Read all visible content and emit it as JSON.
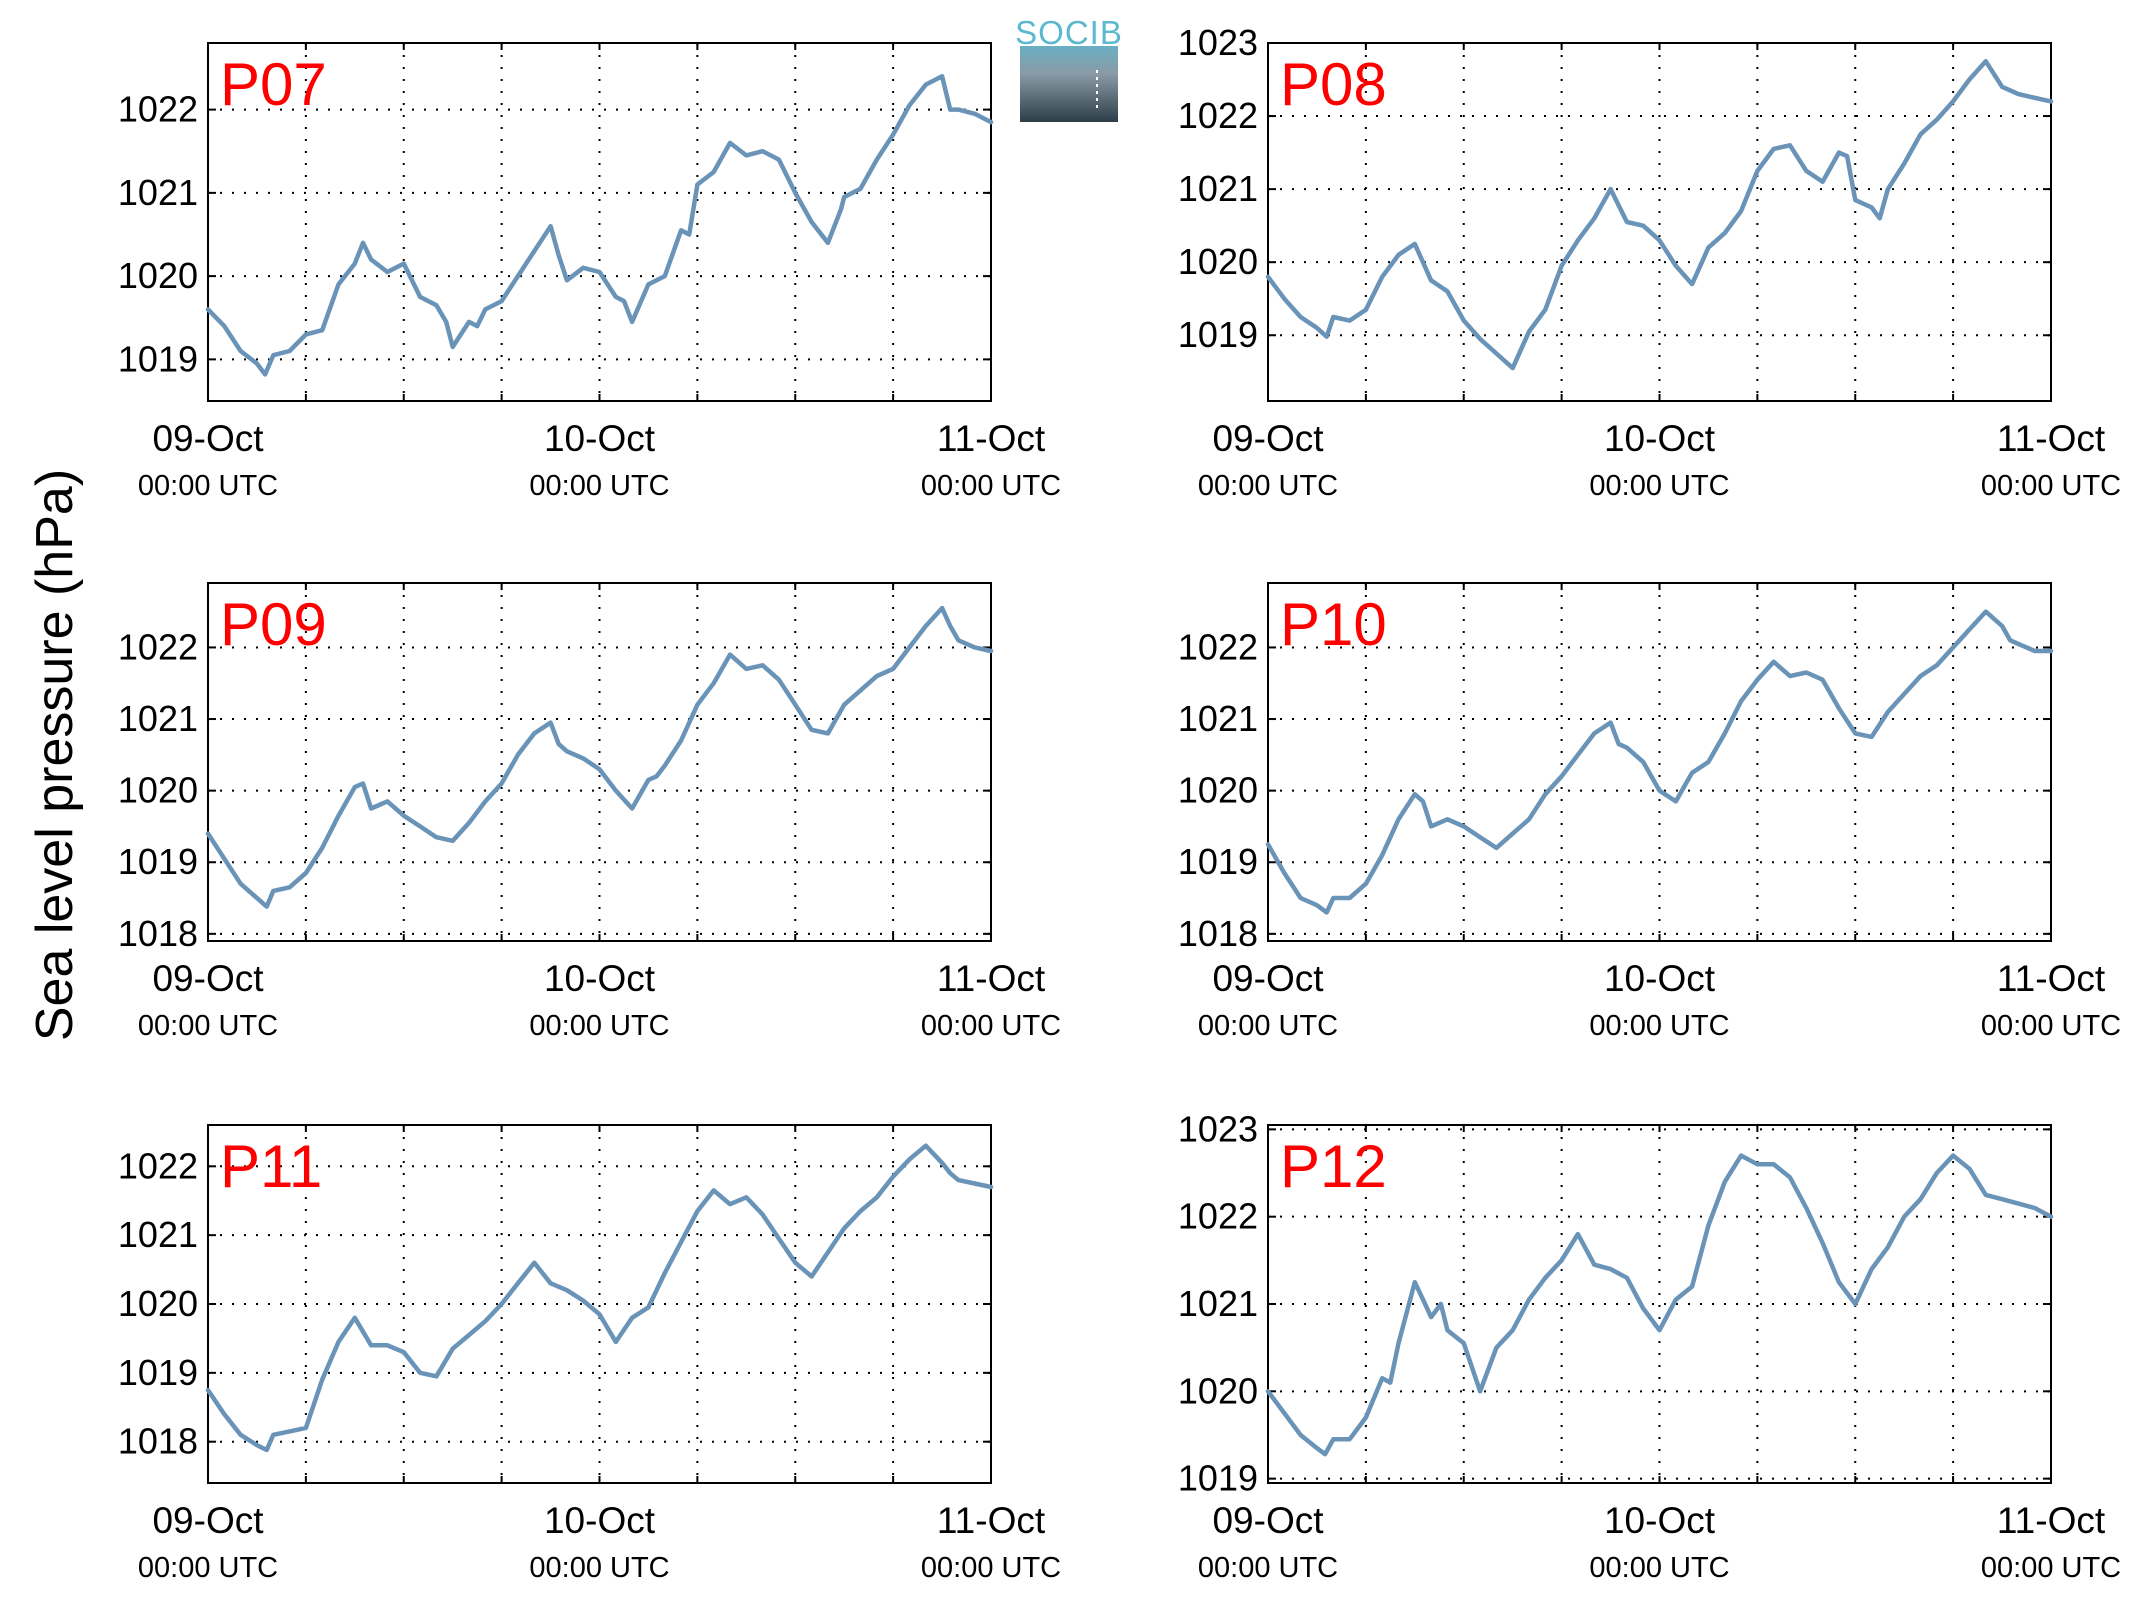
{
  "ylabel": "Sea level pressure (hPa)",
  "logo_text": "SOCIB",
  "colors": {
    "line": "#6a93b8",
    "station_label": "#ff0000",
    "logo_top": "#5bb9cf",
    "logo_bottom": "#2d3e49"
  },
  "chart_data": [
    {
      "type": "line",
      "title": "P07",
      "ylim": [
        1018.5,
        1022.8
      ],
      "yticks": [
        1019,
        1020,
        1021,
        1022
      ],
      "xticks": [
        {
          "date": "09-Oct",
          "time": "00:00 UTC"
        },
        {
          "date": "10-Oct",
          "time": "00:00 UTC"
        },
        {
          "date": "11-Oct",
          "time": "00:00 UTC"
        }
      ],
      "x_hours_range": [
        0,
        48
      ],
      "grid": true,
      "series": [
        {
          "x": [
            0,
            1,
            2,
            3,
            3.5,
            4,
            5,
            6,
            7,
            8,
            9,
            9.5,
            10,
            11,
            12,
            13,
            14,
            14.6,
            15,
            16,
            16.5,
            17,
            18,
            19,
            20,
            21,
            21.5,
            22,
            23,
            24,
            25,
            25.5,
            26,
            27,
            28,
            29,
            29.5,
            30,
            31,
            32,
            33,
            34,
            35,
            36,
            37,
            38,
            38.8,
            39,
            40,
            41,
            42,
            43,
            44,
            45,
            45.5,
            46,
            47,
            48
          ],
          "y": [
            1019.6,
            1019.4,
            1019.1,
            1018.95,
            1018.82,
            1019.05,
            1019.1,
            1019.3,
            1019.35,
            1019.9,
            1020.15,
            1020.4,
            1020.2,
            1020.05,
            1020.15,
            1019.75,
            1019.65,
            1019.45,
            1019.15,
            1019.45,
            1019.4,
            1019.6,
            1019.7,
            1020.0,
            1020.3,
            1020.6,
            1020.25,
            1019.95,
            1020.1,
            1020.05,
            1019.75,
            1019.7,
            1019.45,
            1019.9,
            1020.0,
            1020.55,
            1020.5,
            1021.1,
            1021.25,
            1021.6,
            1021.45,
            1021.5,
            1021.4,
            1021.0,
            1020.65,
            1020.4,
            1020.8,
            1020.95,
            1021.05,
            1021.4,
            1021.7,
            1022.05,
            1022.3,
            1022.4,
            1022.0,
            1022.0,
            1021.95,
            1021.85
          ]
        }
      ]
    },
    {
      "type": "line",
      "title": "P08",
      "ylim": [
        1018.1,
        1023.0
      ],
      "yticks": [
        1019,
        1020,
        1021,
        1022,
        1023
      ],
      "xticks": [
        {
          "date": "09-Oct",
          "time": "00:00 UTC"
        },
        {
          "date": "10-Oct",
          "time": "00:00 UTC"
        },
        {
          "date": "11-Oct",
          "time": "00:00 UTC"
        }
      ],
      "x_hours_range": [
        0,
        48
      ],
      "grid": true,
      "series": [
        {
          "x": [
            0,
            1,
            2,
            3,
            3.6,
            4,
            5,
            6,
            7,
            8,
            9,
            10,
            11,
            12,
            13,
            14,
            15,
            16,
            17,
            18,
            19,
            20,
            21,
            22,
            23,
            24,
            25,
            26,
            27,
            28,
            29,
            30,
            31,
            32,
            33,
            34,
            35,
            35.5,
            36,
            37,
            37.5,
            38,
            39,
            40,
            41,
            42,
            43,
            44,
            45,
            46,
            47,
            48
          ],
          "y": [
            1019.8,
            1019.5,
            1019.25,
            1019.1,
            1018.98,
            1019.25,
            1019.2,
            1019.35,
            1019.8,
            1020.1,
            1020.25,
            1019.75,
            1019.6,
            1019.2,
            1018.95,
            1018.75,
            1018.55,
            1019.05,
            1019.35,
            1019.95,
            1020.3,
            1020.6,
            1021.0,
            1020.55,
            1020.5,
            1020.3,
            1019.95,
            1019.7,
            1020.2,
            1020.4,
            1020.7,
            1021.25,
            1021.55,
            1021.6,
            1021.25,
            1021.1,
            1021.5,
            1021.45,
            1020.85,
            1020.75,
            1020.6,
            1021.0,
            1021.35,
            1021.75,
            1021.95,
            1022.2,
            1022.5,
            1022.75,
            1022.4,
            1022.3,
            1022.25,
            1022.2
          ]
        }
      ]
    },
    {
      "type": "line",
      "title": "P09",
      "ylim": [
        1017.9,
        1022.9
      ],
      "yticks": [
        1018,
        1019,
        1020,
        1021,
        1022
      ],
      "xticks": [
        {
          "date": "09-Oct",
          "time": "00:00 UTC"
        },
        {
          "date": "10-Oct",
          "time": "00:00 UTC"
        },
        {
          "date": "11-Oct",
          "time": "00:00 UTC"
        }
      ],
      "x_hours_range": [
        0,
        48
      ],
      "grid": true,
      "series": [
        {
          "x": [
            0,
            1,
            2,
            3,
            3.6,
            4,
            5,
            6,
            7,
            8,
            9,
            9.5,
            10,
            11,
            12,
            13,
            14,
            15,
            16,
            17,
            18,
            19,
            20,
            21,
            21.5,
            22,
            23,
            24,
            25,
            26,
            27,
            27.5,
            28,
            29,
            30,
            31,
            32,
            33,
            34,
            35,
            36,
            37,
            38,
            39,
            40,
            41,
            42,
            43,
            44,
            45,
            45.5,
            46,
            47,
            48
          ],
          "y": [
            1019.4,
            1019.05,
            1018.7,
            1018.5,
            1018.38,
            1018.6,
            1018.65,
            1018.85,
            1019.2,
            1019.65,
            1020.05,
            1020.1,
            1019.75,
            1019.85,
            1019.65,
            1019.5,
            1019.35,
            1019.3,
            1019.55,
            1019.85,
            1020.1,
            1020.5,
            1020.8,
            1020.95,
            1020.65,
            1020.55,
            1020.45,
            1020.3,
            1020.0,
            1019.75,
            1020.15,
            1020.2,
            1020.35,
            1020.7,
            1021.2,
            1021.5,
            1021.9,
            1021.7,
            1021.75,
            1021.55,
            1021.2,
            1020.85,
            1020.8,
            1021.2,
            1021.4,
            1021.6,
            1021.7,
            1022.0,
            1022.3,
            1022.55,
            1022.3,
            1022.1,
            1022.0,
            1021.95
          ]
        }
      ]
    },
    {
      "type": "line",
      "title": "P10",
      "ylim": [
        1017.9,
        1022.9
      ],
      "yticks": [
        1018,
        1019,
        1020,
        1021,
        1022
      ],
      "xticks": [
        {
          "date": "09-Oct",
          "time": "00:00 UTC"
        },
        {
          "date": "10-Oct",
          "time": "00:00 UTC"
        },
        {
          "date": "11-Oct",
          "time": "00:00 UTC"
        }
      ],
      "x_hours_range": [
        0,
        48
      ],
      "grid": true,
      "series": [
        {
          "x": [
            0,
            1,
            2,
            3,
            3.6,
            4,
            5,
            6,
            7,
            8,
            9,
            9.5,
            10,
            11,
            12,
            13,
            14,
            15,
            16,
            17,
            18,
            19,
            20,
            21,
            21.5,
            22,
            23,
            24,
            25,
            26,
            27,
            28,
            29,
            30,
            31,
            32,
            33,
            34,
            35,
            36,
            37,
            38,
            39,
            40,
            41,
            42,
            43,
            44,
            45,
            45.5,
            46,
            47,
            48
          ],
          "y": [
            1019.25,
            1018.85,
            1018.5,
            1018.4,
            1018.3,
            1018.5,
            1018.5,
            1018.7,
            1019.1,
            1019.6,
            1019.95,
            1019.85,
            1019.5,
            1019.6,
            1019.5,
            1019.35,
            1019.2,
            1019.4,
            1019.6,
            1019.95,
            1020.2,
            1020.5,
            1020.8,
            1020.95,
            1020.65,
            1020.6,
            1020.4,
            1020.0,
            1019.85,
            1020.25,
            1020.4,
            1020.8,
            1021.25,
            1021.55,
            1021.8,
            1021.6,
            1021.65,
            1021.55,
            1021.15,
            1020.8,
            1020.75,
            1021.1,
            1021.35,
            1021.6,
            1021.75,
            1022.0,
            1022.25,
            1022.5,
            1022.3,
            1022.1,
            1022.05,
            1021.95,
            1021.95
          ]
        }
      ]
    },
    {
      "type": "line",
      "title": "P11",
      "ylim": [
        1017.4,
        1022.6
      ],
      "yticks": [
        1018,
        1019,
        1020,
        1021,
        1022
      ],
      "xticks": [
        {
          "date": "09-Oct",
          "time": "00:00 UTC"
        },
        {
          "date": "10-Oct",
          "time": "00:00 UTC"
        },
        {
          "date": "11-Oct",
          "time": "00:00 UTC"
        }
      ],
      "x_hours_range": [
        0,
        48
      ],
      "grid": true,
      "series": [
        {
          "x": [
            0,
            1,
            2,
            3,
            3.6,
            4,
            5,
            6,
            7,
            8,
            9,
            10,
            11,
            12,
            13,
            14,
            15,
            16,
            17,
            18,
            19,
            20,
            21,
            22,
            23,
            24,
            25,
            26,
            27,
            28,
            29,
            30,
            31,
            32,
            33,
            34,
            35,
            36,
            37,
            38,
            39,
            40,
            41,
            42,
            43,
            44,
            45,
            45.5,
            46,
            47,
            48
          ],
          "y": [
            1018.75,
            1018.4,
            1018.1,
            1017.95,
            1017.88,
            1018.1,
            1018.15,
            1018.2,
            1018.9,
            1019.45,
            1019.8,
            1019.4,
            1019.4,
            1019.3,
            1019.0,
            1018.95,
            1019.35,
            1019.55,
            1019.75,
            1020.0,
            1020.3,
            1020.6,
            1020.3,
            1020.2,
            1020.05,
            1019.85,
            1019.45,
            1019.8,
            1019.95,
            1020.45,
            1020.9,
            1021.35,
            1021.65,
            1021.45,
            1021.55,
            1021.3,
            1020.95,
            1020.6,
            1020.4,
            1020.75,
            1021.1,
            1021.35,
            1021.55,
            1021.85,
            1022.1,
            1022.3,
            1022.05,
            1021.9,
            1021.8,
            1021.75,
            1021.7
          ]
        }
      ]
    },
    {
      "type": "line",
      "title": "P12",
      "ylim": [
        1018.95,
        1023.05
      ],
      "yticks": [
        1019,
        1020,
        1021,
        1022,
        1023
      ],
      "xticks": [
        {
          "date": "09-Oct",
          "time": "00:00 UTC"
        },
        {
          "date": "10-Oct",
          "time": "00:00 UTC"
        },
        {
          "date": "11-Oct",
          "time": "00:00 UTC"
        }
      ],
      "x_hours_range": [
        0,
        48
      ],
      "grid": true,
      "series": [
        {
          "x": [
            0,
            1,
            2,
            3,
            3.5,
            4,
            5,
            6,
            7,
            7.5,
            8,
            9,
            9.5,
            10,
            10.6,
            11,
            12,
            13,
            14,
            15,
            16,
            17,
            18,
            19,
            20,
            21,
            22,
            23,
            24,
            25,
            26,
            27,
            28,
            29,
            30,
            31,
            32,
            33,
            34,
            35,
            36,
            37,
            38,
            39,
            40,
            41,
            42,
            43,
            44,
            45,
            46,
            47,
            48
          ],
          "y": [
            1020.0,
            1019.75,
            1019.5,
            1019.35,
            1019.28,
            1019.45,
            1019.45,
            1019.7,
            1020.15,
            1020.1,
            1020.55,
            1021.25,
            1021.05,
            1020.85,
            1021.0,
            1020.7,
            1020.55,
            1020.0,
            1020.5,
            1020.7,
            1021.05,
            1021.3,
            1021.5,
            1021.8,
            1021.45,
            1021.4,
            1021.3,
            1020.95,
            1020.7,
            1021.05,
            1021.2,
            1021.9,
            1022.4,
            1022.7,
            1022.6,
            1022.6,
            1022.45,
            1022.1,
            1021.7,
            1021.25,
            1021.0,
            1021.4,
            1021.65,
            1022.0,
            1022.2,
            1022.5,
            1022.7,
            1022.55,
            1022.25,
            1022.2,
            1022.15,
            1022.1,
            1022.0
          ]
        }
      ]
    }
  ]
}
